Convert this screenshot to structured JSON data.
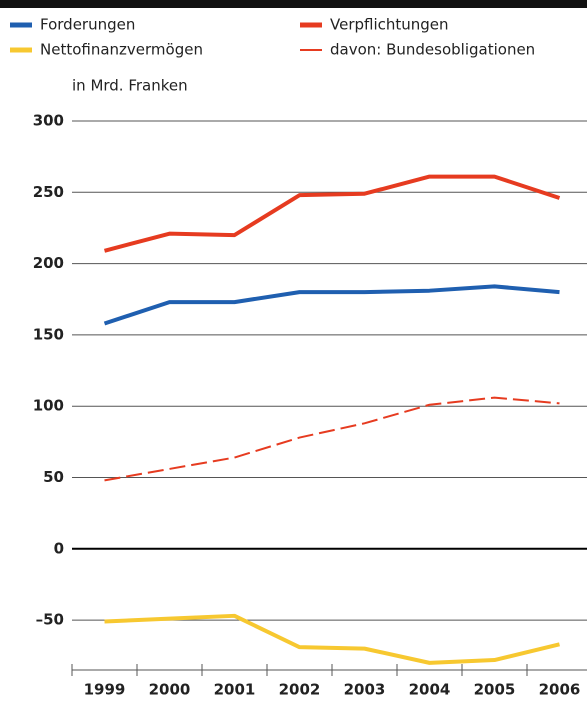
{
  "chart_data": {
    "type": "line",
    "unit_label": "in Mrd. Franken",
    "categories": [
      "1999",
      "2000",
      "2001",
      "2002",
      "2003",
      "2004",
      "2005",
      "2006"
    ],
    "series": [
      {
        "name": "Forderungen",
        "color": "#1f5fb0",
        "values": [
          158,
          173,
          173,
          180,
          180,
          181,
          184,
          180
        ]
      },
      {
        "name": "Verpflichtungen",
        "color": "#e63b20",
        "values": [
          209,
          221,
          220,
          248,
          249,
          261,
          261,
          246
        ]
      },
      {
        "name": "Nettofinanzvermögen",
        "color": "#f7c830",
        "values": [
          -51,
          -49,
          -47,
          -69,
          -70,
          -80,
          -78,
          -67
        ]
      },
      {
        "name": "davon: Bundesobligationen",
        "color": "#e63b20",
        "dashed": true,
        "values": [
          48,
          56,
          64,
          78,
          88,
          101,
          106,
          102
        ]
      }
    ],
    "ylim": [
      -85,
      300
    ],
    "yticks": [
      {
        "value": -50,
        "label": "–50"
      },
      0,
      50,
      100,
      150,
      200,
      250,
      300
    ],
    "grid": true
  }
}
